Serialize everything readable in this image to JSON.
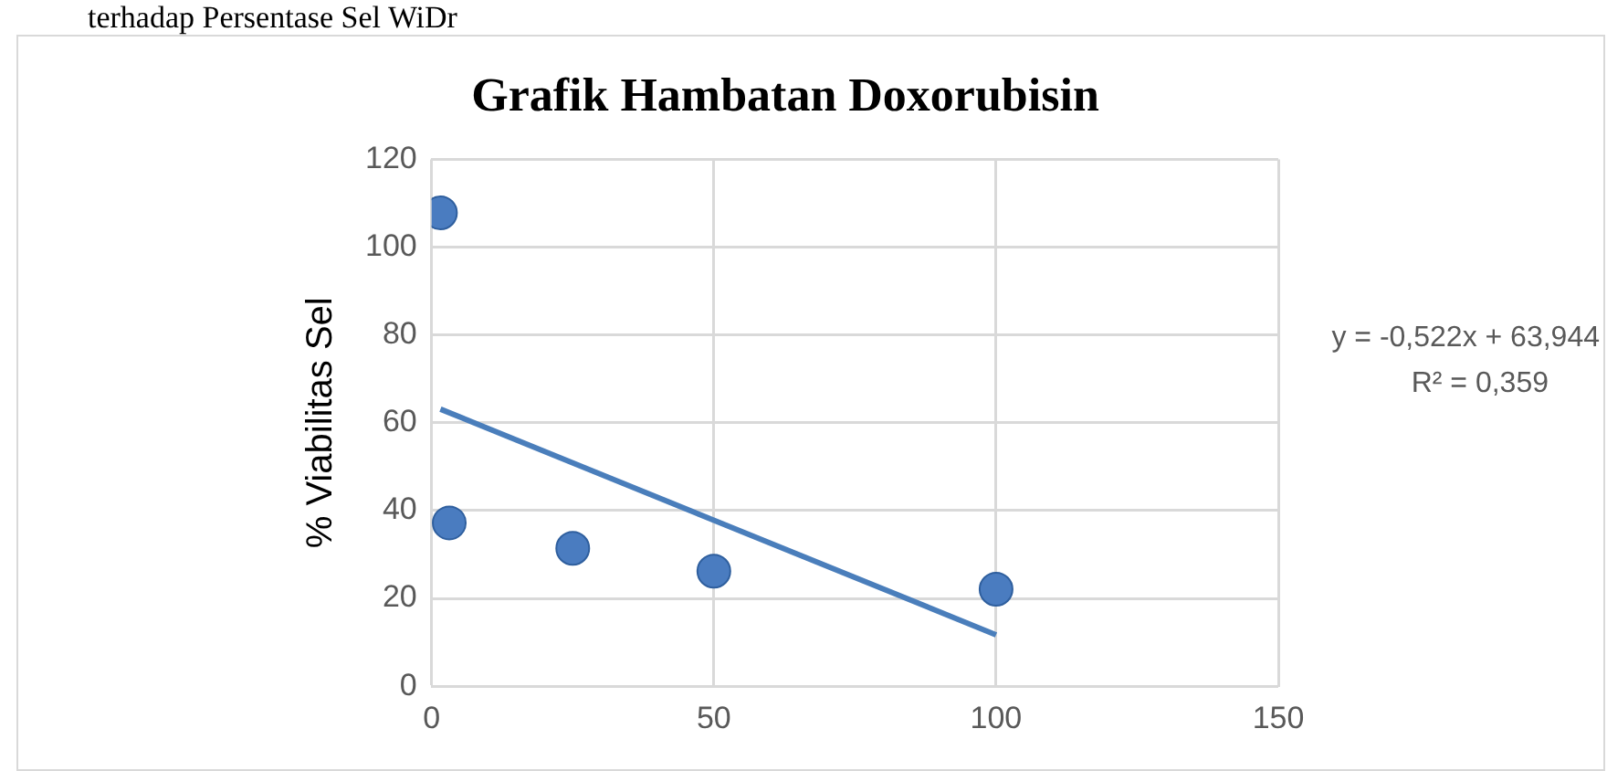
{
  "chart_data": {
    "type": "scatter",
    "title": "Grafik Hambatan Doxorubisin",
    "ylabel": "% Viabilitas Sel",
    "series": [
      {
        "color": "#4a7cc0",
        "x": [
          1.5625,
          3.125,
          25,
          50,
          100
        ],
        "values": [
          107.8,
          37.2,
          31.4,
          26.2,
          22.1
        ],
        "marker": "circle"
      },
      {
        "type": "line",
        "color": "#4a7ebb",
        "x": [
          1.5625,
          100
        ],
        "values": [
          63.1,
          11.7
        ],
        "marker": "none"
      }
    ],
    "xlim": [
      0,
      150
    ],
    "xticks": [
      0,
      50,
      100,
      150
    ],
    "ylim": [
      0,
      120
    ],
    "yticks": [
      0,
      20,
      40,
      60,
      80,
      100,
      120
    ],
    "grid": true,
    "legend": false,
    "annotations": [
      "terhadap Persentase Sel WiDr",
      "y = -0,522x + 63,944",
      "R² = 0,359"
    ]
  }
}
